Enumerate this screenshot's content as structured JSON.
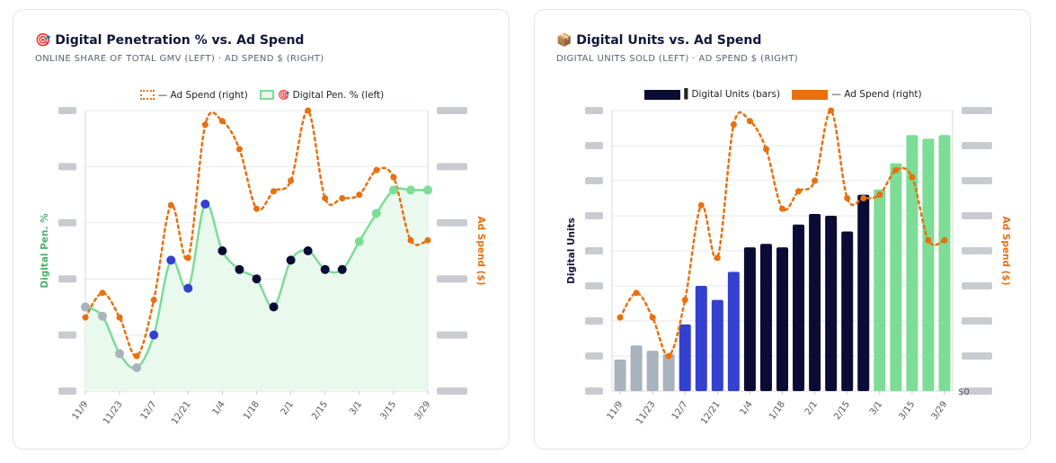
{
  "charts": [
    {
      "title": "🎯 Digital Penetration % vs. Ad Spend",
      "subtitle": "ONLINE SHARE OF TOTAL GMV (LEFT) · AD SPEND $ (RIGHT)",
      "legend": [
        "— Ad Spend (right)",
        "🎯 Digital Pen. % (left)"
      ],
      "left_axis_label": "Digital Pen. %",
      "right_axis_label": "Ad Spend ($)"
    },
    {
      "title": "📦 Digital Units vs. Ad Spend",
      "subtitle": "DIGITAL UNITS SOLD (LEFT) · AD SPEND $ (RIGHT)",
      "legend": [
        "▌Digital Units (bars)",
        "— Ad Spend (right)"
      ],
      "left_axis_label": "Digital Units",
      "right_axis_label": "Ad Spend ($)",
      "right_tick_visible": "$0"
    }
  ],
  "colors": {
    "ad_spend": "#e8700f",
    "pen_line": "#7ddc95",
    "pen_fill": "#e9f9ee",
    "gray": "#a8b3bd",
    "blue": "#3340d0",
    "navy": "#0b0c36",
    "green": "#7ddc95"
  },
  "chart_data": [
    {
      "type": "line",
      "title": "Digital Penetration % vs. Ad Spend",
      "x": [
        "11/9",
        "11/16",
        "11/23",
        "11/30",
        "12/7",
        "12/14",
        "12/21",
        "12/28",
        "1/4",
        "1/11",
        "1/18",
        "1/25",
        "2/1",
        "2/8",
        "2/15",
        "2/22",
        "3/1",
        "3/8",
        "3/15",
        "3/22",
        "3/29"
      ],
      "xticks": [
        "11/9",
        "11/23",
        "12/7",
        "12/21",
        "1/4",
        "1/18",
        "2/1",
        "2/15",
        "3/1",
        "3/15",
        "3/29"
      ],
      "ylim_left": [
        0,
        6
      ],
      "ylim_right": [
        0,
        8
      ],
      "series": [
        {
          "name": "Digital Pen. % (left)",
          "axis": "left",
          "values": [
            1.8,
            1.6,
            0.8,
            0.5,
            1.2,
            2.8,
            2.2,
            4.0,
            3.0,
            2.6,
            2.4,
            1.8,
            2.8,
            3.0,
            2.6,
            2.6,
            3.2,
            3.8,
            4.3,
            4.3,
            4.3
          ],
          "point_groups": [
            "gray",
            "gray",
            "gray",
            "gray",
            "blue",
            "blue",
            "blue",
            "blue",
            "navy",
            "navy",
            "navy",
            "navy",
            "navy",
            "navy",
            "navy",
            "navy",
            "green",
            "green",
            "green",
            "green",
            "green"
          ]
        },
        {
          "name": "Ad Spend (right)",
          "axis": "right",
          "values": [
            2.1,
            2.8,
            2.1,
            1.0,
            2.6,
            5.3,
            3.8,
            7.6,
            7.7,
            6.9,
            5.2,
            5.7,
            6.0,
            8.0,
            5.5,
            5.5,
            5.6,
            6.3,
            6.1,
            4.3,
            4.3
          ]
        }
      ]
    },
    {
      "type": "bar",
      "title": "Digital Units vs. Ad Spend",
      "x": [
        "11/9",
        "11/16",
        "11/23",
        "11/30",
        "12/7",
        "12/14",
        "12/21",
        "12/28",
        "1/4",
        "1/11",
        "1/18",
        "1/25",
        "2/1",
        "2/8",
        "2/15",
        "2/22",
        "3/1",
        "3/8",
        "3/15",
        "3/22",
        "3/29"
      ],
      "xticks": [
        "11/9",
        "11/23",
        "12/7",
        "12/21",
        "1/4",
        "1/18",
        "2/1",
        "2/15",
        "3/1",
        "3/15",
        "3/29"
      ],
      "ylim_left": [
        0,
        8
      ],
      "ylim_right": [
        0,
        8
      ],
      "series": [
        {
          "name": "Digital Units (bars)",
          "axis": "left",
          "values": [
            0.9,
            1.3,
            1.15,
            1.05,
            1.9,
            3.0,
            2.6,
            3.4,
            4.1,
            4.2,
            4.1,
            4.75,
            5.05,
            5.0,
            4.55,
            5.6,
            5.75,
            6.5,
            7.3,
            7.2,
            7.3
          ],
          "bar_groups": [
            "gray",
            "gray",
            "gray",
            "gray",
            "blue",
            "blue",
            "blue",
            "blue",
            "navy",
            "navy",
            "navy",
            "navy",
            "navy",
            "navy",
            "navy",
            "navy",
            "green",
            "green",
            "green",
            "green",
            "green"
          ]
        },
        {
          "name": "Ad Spend (right)",
          "axis": "right",
          "values": [
            2.1,
            2.8,
            2.1,
            1.0,
            2.6,
            5.3,
            3.8,
            7.6,
            7.7,
            6.9,
            5.2,
            5.7,
            6.0,
            8.0,
            5.5,
            5.5,
            5.6,
            6.3,
            6.1,
            4.3,
            4.3
          ]
        }
      ]
    }
  ]
}
